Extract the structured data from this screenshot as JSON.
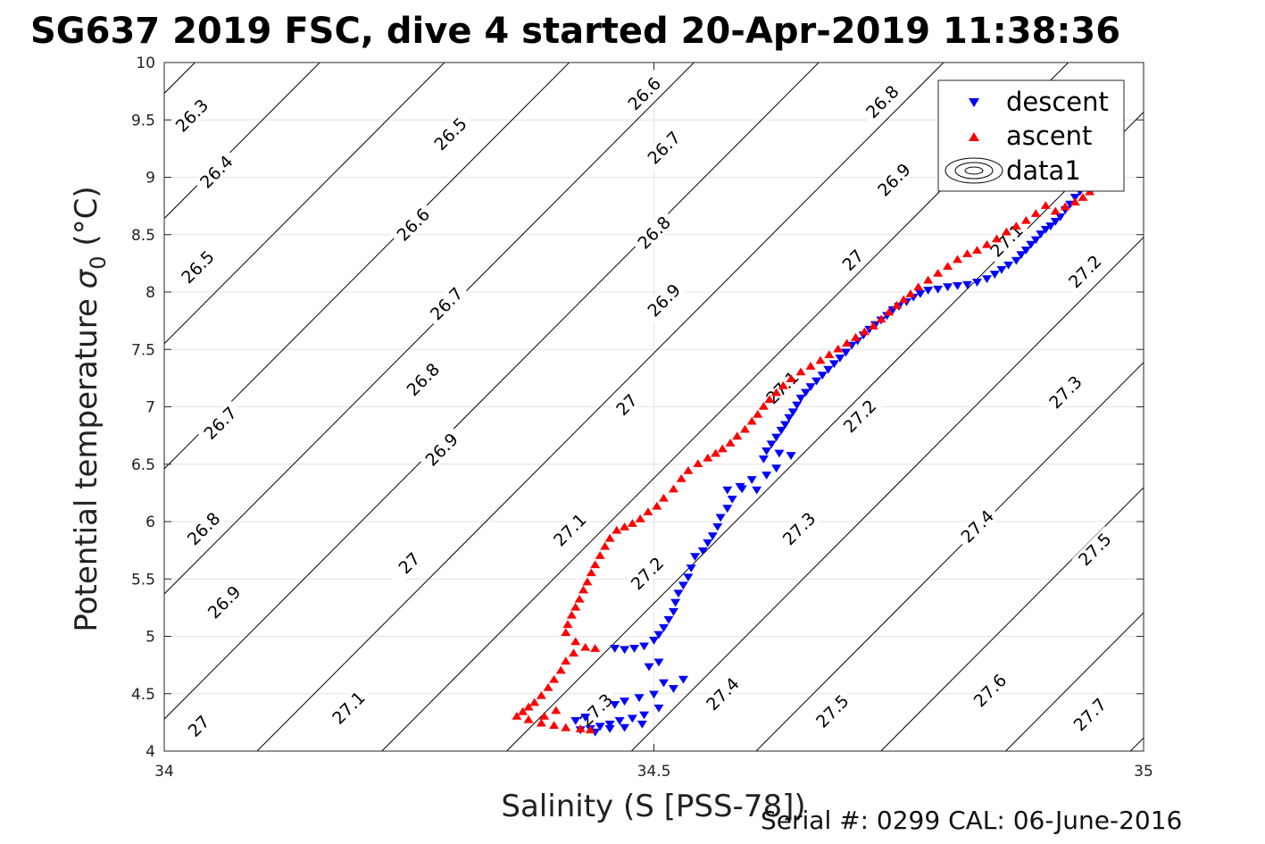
{
  "chart_data": {
    "type": "scatter",
    "title": "SG637 2019 FSC, dive 4 started 20-Apr-2019 11:38:36",
    "xlabel": "Salinity (S [PSS-78])",
    "ylabel_main": "Potential temperature ",
    "ylabel_sigma": "σ",
    "ylabel_sub": "0",
    "ylabel_unit": " (°C)",
    "footer": "Serial #: 0299 CAL: 06-June-2016",
    "xlim": [
      34,
      35
    ],
    "ylim": [
      4,
      10
    ],
    "xticks": [
      {
        "value": 34,
        "label": "34"
      },
      {
        "value": 34.5,
        "label": "34.5"
      },
      {
        "value": 35,
        "label": "35"
      }
    ],
    "yticks": [
      {
        "value": 4,
        "label": "4"
      },
      {
        "value": 4.5,
        "label": "4.5"
      },
      {
        "value": 5,
        "label": "5"
      },
      {
        "value": 5.5,
        "label": "5.5"
      },
      {
        "value": 6,
        "label": "6"
      },
      {
        "value": 6.5,
        "label": "6.5"
      },
      {
        "value": 7,
        "label": "7"
      },
      {
        "value": 7.5,
        "label": "7.5"
      },
      {
        "value": 8,
        "label": "8"
      },
      {
        "value": 8.5,
        "label": "8.5"
      },
      {
        "value": 9,
        "label": "9"
      },
      {
        "value": 9.5,
        "label": "9.5"
      },
      {
        "value": 10,
        "label": "10"
      }
    ],
    "grid": true,
    "legend_position": "top-right",
    "legend": [
      {
        "label": "descent",
        "marker": "triangle-down",
        "color": "#0000ff"
      },
      {
        "label": "ascent",
        "marker": "triangle-up",
        "color": "#ff0000"
      },
      {
        "label": "data1",
        "marker": "contour",
        "color": "#000000"
      }
    ],
    "contour_levels": [
      26.3,
      26.4,
      26.5,
      26.6,
      26.7,
      26.8,
      26.9,
      27.0,
      27.1,
      27.2,
      27.3,
      27.4,
      27.5,
      27.6,
      27.7
    ],
    "contour_labels": [
      {
        "text": "26.3",
        "s": 34.028,
        "t": 9.54
      },
      {
        "text": "26.4",
        "s": 34.053,
        "t": 9.05
      },
      {
        "text": "26.5",
        "s": 34.034,
        "t": 8.22
      },
      {
        "text": "26.6",
        "s": 34.254,
        "t": 8.59
      },
      {
        "text": "26.5",
        "s": 34.292,
        "t": 9.38
      },
      {
        "text": "26.6",
        "s": 34.49,
        "t": 9.73
      },
      {
        "text": "26.7",
        "s": 34.51,
        "t": 9.26
      },
      {
        "text": "26.8",
        "s": 34.733,
        "t": 9.66
      },
      {
        "text": "26.9",
        "s": 34.745,
        "t": 8.98
      },
      {
        "text": "26.7",
        "s": 34.288,
        "t": 7.9
      },
      {
        "text": "26.8",
        "s": 34.5,
        "t": 8.52
      },
      {
        "text": "27",
        "s": 34.703,
        "t": 8.28
      },
      {
        "text": "26.9",
        "s": 34.51,
        "t": 7.93
      },
      {
        "text": "26.8",
        "s": 34.264,
        "t": 7.24
      },
      {
        "text": "26.7",
        "s": 34.057,
        "t": 6.86
      },
      {
        "text": "26.9",
        "s": 34.283,
        "t": 6.63
      },
      {
        "text": "27",
        "s": 34.472,
        "t": 7.02
      },
      {
        "text": "27.1",
        "s": 34.631,
        "t": 7.17
      },
      {
        "text": "26.8",
        "s": 34.04,
        "t": 5.94
      },
      {
        "text": "26.9",
        "s": 34.061,
        "t": 5.3
      },
      {
        "text": "27",
        "s": 34.25,
        "t": 5.64
      },
      {
        "text": "27.1",
        "s": 34.414,
        "t": 5.93
      },
      {
        "text": "27.2",
        "s": 34.493,
        "t": 5.55
      },
      {
        "text": "27.3",
        "s": 34.648,
        "t": 5.94
      },
      {
        "text": "27.2",
        "s": 34.71,
        "t": 6.92
      },
      {
        "text": "27.1",
        "s": 34.86,
        "t": 8.45
      },
      {
        "text": "27.2",
        "s": 34.94,
        "t": 8.18
      },
      {
        "text": "27.3",
        "s": 34.92,
        "t": 7.13
      },
      {
        "text": "27.4",
        "s": 34.83,
        "t": 5.96
      },
      {
        "text": "27.5",
        "s": 34.95,
        "t": 5.76
      },
      {
        "text": "27.1",
        "s": 34.188,
        "t": 4.38
      },
      {
        "text": "27.3",
        "s": 34.441,
        "t": 4.36
      },
      {
        "text": "27.4",
        "s": 34.57,
        "t": 4.5
      },
      {
        "text": "27.5",
        "s": 34.682,
        "t": 4.35
      },
      {
        "text": "27.6",
        "s": 34.843,
        "t": 4.53
      },
      {
        "text": "27.7",
        "s": 34.945,
        "t": 4.32
      },
      {
        "text": "27",
        "s": 34.035,
        "t": 4.22
      }
    ],
    "series": [
      {
        "name": "descent",
        "marker": "triangle-down",
        "color": "#0000ff",
        "points": [
          [
            34.94,
            8.93
          ],
          [
            34.935,
            8.88
          ],
          [
            34.93,
            8.83
          ],
          [
            34.925,
            8.77
          ],
          [
            34.92,
            8.72
          ],
          [
            34.915,
            8.66
          ],
          [
            34.91,
            8.62
          ],
          [
            34.905,
            8.58
          ],
          [
            34.9,
            8.55
          ],
          [
            34.895,
            8.51
          ],
          [
            34.89,
            8.46
          ],
          [
            34.885,
            8.42
          ],
          [
            34.88,
            8.37
          ],
          [
            34.875,
            8.33
          ],
          [
            34.87,
            8.28
          ],
          [
            34.862,
            8.24
          ],
          [
            34.855,
            8.2
          ],
          [
            34.848,
            8.16
          ],
          [
            34.84,
            8.12
          ],
          [
            34.83,
            8.09
          ],
          [
            34.82,
            8.07
          ],
          [
            34.81,
            8.06
          ],
          [
            34.8,
            8.05
          ],
          [
            34.79,
            8.03
          ],
          [
            34.78,
            8.02
          ],
          [
            34.772,
            7.99
          ],
          [
            34.765,
            7.96
          ],
          [
            34.758,
            7.92
          ],
          [
            34.75,
            7.88
          ],
          [
            34.744,
            7.85
          ],
          [
            34.738,
            7.8
          ],
          [
            34.732,
            7.76
          ],
          [
            34.726,
            7.72
          ],
          [
            34.72,
            7.68
          ],
          [
            34.714,
            7.63
          ],
          [
            34.708,
            7.58
          ],
          [
            34.702,
            7.54
          ],
          [
            34.696,
            7.48
          ],
          [
            34.69,
            7.43
          ],
          [
            34.684,
            7.38
          ],
          [
            34.678,
            7.33
          ],
          [
            34.672,
            7.28
          ],
          [
            34.666,
            7.23
          ],
          [
            34.66,
            7.18
          ],
          [
            34.655,
            7.13
          ],
          [
            34.65,
            7.08
          ],
          [
            34.646,
            7.02
          ],
          [
            34.642,
            6.96
          ],
          [
            34.638,
            6.91
          ],
          [
            34.634,
            6.85
          ],
          [
            34.63,
            6.8
          ],
          [
            34.625,
            6.74
          ],
          [
            34.62,
            6.68
          ],
          [
            34.615,
            6.62
          ],
          [
            34.612,
            6.55
          ],
          [
            34.628,
            6.6
          ],
          [
            34.64,
            6.58
          ],
          [
            34.625,
            6.47
          ],
          [
            34.615,
            6.41
          ],
          [
            34.6,
            6.37
          ],
          [
            34.588,
            6.31
          ],
          [
            34.575,
            6.28
          ],
          [
            34.59,
            6.29
          ],
          [
            34.605,
            6.28
          ],
          [
            34.58,
            6.2
          ],
          [
            34.575,
            6.12
          ],
          [
            34.568,
            6.04
          ],
          [
            34.565,
            5.96
          ],
          [
            34.56,
            5.88
          ],
          [
            34.555,
            5.82
          ],
          [
            34.55,
            5.75
          ],
          [
            34.542,
            5.7
          ],
          [
            34.538,
            5.6
          ],
          [
            34.535,
            5.52
          ],
          [
            34.53,
            5.45
          ],
          [
            34.525,
            5.38
          ],
          [
            34.522,
            5.3
          ],
          [
            34.52,
            5.22
          ],
          [
            34.515,
            5.15
          ],
          [
            34.51,
            5.08
          ],
          [
            34.505,
            5.02
          ],
          [
            34.5,
            4.97
          ],
          [
            34.49,
            4.92
          ],
          [
            34.48,
            4.9
          ],
          [
            34.47,
            4.89
          ],
          [
            34.46,
            4.9
          ],
          [
            34.505,
            4.78
          ],
          [
            34.495,
            4.74
          ],
          [
            34.51,
            4.6
          ],
          [
            34.52,
            4.55
          ],
          [
            34.53,
            4.63
          ],
          [
            34.5,
            4.5
          ],
          [
            34.485,
            4.47
          ],
          [
            34.47,
            4.44
          ],
          [
            34.46,
            4.41
          ],
          [
            34.505,
            4.38
          ],
          [
            34.49,
            4.32
          ],
          [
            34.478,
            4.29
          ],
          [
            34.465,
            4.27
          ],
          [
            34.455,
            4.24
          ],
          [
            34.445,
            4.22
          ],
          [
            34.435,
            4.2
          ],
          [
            34.425,
            4.19
          ],
          [
            34.44,
            4.17
          ],
          [
            34.455,
            4.2
          ],
          [
            34.47,
            4.21
          ],
          [
            34.488,
            4.24
          ],
          [
            34.42,
            4.27
          ],
          [
            34.43,
            4.3
          ]
        ]
      },
      {
        "name": "ascent",
        "marker": "triangle-up",
        "color": "#ff0000",
        "points": [
          [
            34.945,
            8.87
          ],
          [
            34.938,
            8.82
          ],
          [
            34.93,
            8.78
          ],
          [
            34.92,
            8.74
          ],
          [
            34.91,
            8.7
          ],
          [
            34.9,
            8.75
          ],
          [
            34.89,
            8.68
          ],
          [
            34.88,
            8.62
          ],
          [
            34.87,
            8.57
          ],
          [
            34.86,
            8.52
          ],
          [
            34.85,
            8.46
          ],
          [
            34.84,
            8.41
          ],
          [
            34.83,
            8.36
          ],
          [
            34.82,
            8.33
          ],
          [
            34.81,
            8.28
          ],
          [
            34.8,
            8.22
          ],
          [
            34.79,
            8.16
          ],
          [
            34.78,
            8.1
          ],
          [
            34.77,
            8.04
          ],
          [
            34.762,
            7.98
          ],
          [
            34.755,
            7.93
          ],
          [
            34.748,
            7.88
          ],
          [
            34.74,
            7.82
          ],
          [
            34.732,
            7.76
          ],
          [
            34.724,
            7.7
          ],
          [
            34.715,
            7.65
          ],
          [
            34.706,
            7.6
          ],
          [
            34.697,
            7.55
          ],
          [
            34.688,
            7.5
          ],
          [
            34.679,
            7.45
          ],
          [
            34.67,
            7.4
          ],
          [
            34.66,
            7.35
          ],
          [
            34.65,
            7.3
          ],
          [
            34.64,
            7.24
          ],
          [
            34.632,
            7.18
          ],
          [
            34.625,
            7.12
          ],
          [
            34.618,
            7.06
          ],
          [
            34.612,
            7.0
          ],
          [
            34.606,
            6.93
          ],
          [
            34.6,
            6.87
          ],
          [
            34.593,
            6.8
          ],
          [
            34.585,
            6.74
          ],
          [
            34.578,
            6.68
          ],
          [
            34.57,
            6.63
          ],
          [
            34.563,
            6.59
          ],
          [
            34.555,
            6.55
          ],
          [
            34.545,
            6.5
          ],
          [
            34.535,
            6.44
          ],
          [
            34.528,
            6.37
          ],
          [
            34.52,
            6.28
          ],
          [
            34.51,
            6.2
          ],
          [
            34.503,
            6.13
          ],
          [
            34.494,
            6.08
          ],
          [
            34.486,
            6.02
          ],
          [
            34.478,
            5.98
          ],
          [
            34.47,
            5.95
          ],
          [
            34.462,
            5.92
          ],
          [
            34.455,
            5.85
          ],
          [
            34.45,
            5.78
          ],
          [
            34.445,
            5.7
          ],
          [
            34.44,
            5.62
          ],
          [
            34.436,
            5.55
          ],
          [
            34.432,
            5.47
          ],
          [
            34.428,
            5.4
          ],
          [
            34.424,
            5.32
          ],
          [
            34.42,
            5.25
          ],
          [
            34.416,
            5.18
          ],
          [
            34.412,
            5.1
          ],
          [
            34.41,
            5.03
          ],
          [
            34.42,
            4.95
          ],
          [
            34.43,
            4.9
          ],
          [
            34.44,
            4.89
          ],
          [
            34.418,
            4.85
          ],
          [
            34.41,
            4.78
          ],
          [
            34.405,
            4.7
          ],
          [
            34.398,
            4.62
          ],
          [
            34.392,
            4.55
          ],
          [
            34.385,
            4.48
          ],
          [
            34.378,
            4.42
          ],
          [
            34.372,
            4.38
          ],
          [
            34.366,
            4.34
          ],
          [
            34.36,
            4.3
          ],
          [
            34.372,
            4.27
          ],
          [
            34.385,
            4.24
          ],
          [
            34.398,
            4.22
          ],
          [
            34.41,
            4.2
          ],
          [
            34.425,
            4.19
          ],
          [
            34.435,
            4.18
          ],
          [
            34.388,
            4.3
          ],
          [
            34.4,
            4.35
          ]
        ]
      }
    ]
  }
}
